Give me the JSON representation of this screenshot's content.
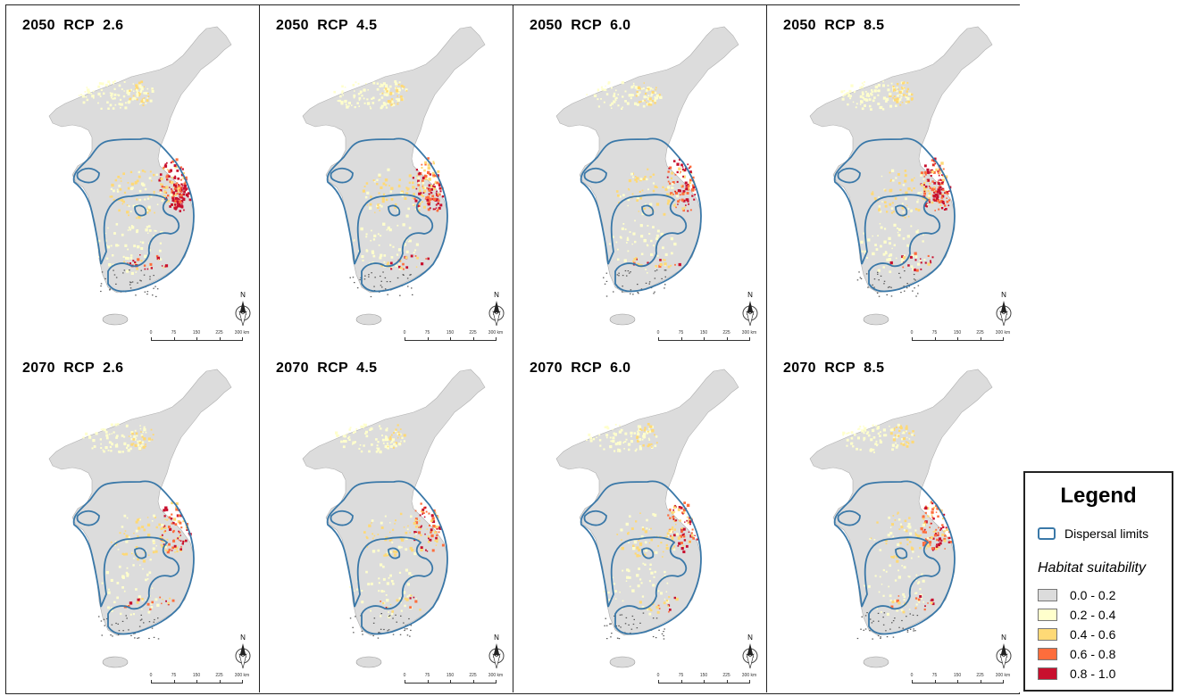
{
  "panels": [
    {
      "title": "2050  RCP  2.6",
      "intensity": 1.0
    },
    {
      "title": "2050  RCP  4.5",
      "intensity": 0.85
    },
    {
      "title": "2050  RCP  6.0",
      "intensity": 0.6
    },
    {
      "title": "2050  RCP  8.5",
      "intensity": 0.95
    },
    {
      "title": "2070  RCP  2.6",
      "intensity": 0.55
    },
    {
      "title": "2070  RCP  4.5",
      "intensity": 0.45
    },
    {
      "title": "2070  RCP  6.0",
      "intensity": 0.5
    },
    {
      "title": "2070  RCP  8.5",
      "intensity": 0.6
    }
  ],
  "north_label": "N",
  "scale_labels": [
    "0",
    "75",
    "150",
    "225",
    "300 km"
  ],
  "legend": {
    "title": "Legend",
    "dispersal_label": "Dispersal limits",
    "dispersal_color": "#3a78a8",
    "habitat_title": "Habitat suitability",
    "classes": [
      {
        "label": "0.0 - 0.2",
        "color": "#dcdcdc"
      },
      {
        "label": "0.2 - 0.4",
        "color": "#ffffcc"
      },
      {
        "label": "0.4 - 0.6",
        "color": "#fed976"
      },
      {
        "label": "0.6 - 0.8",
        "color": "#fd6d3c"
      },
      {
        "label": "0.8 - 1.0",
        "color": "#c8102e"
      }
    ]
  }
}
